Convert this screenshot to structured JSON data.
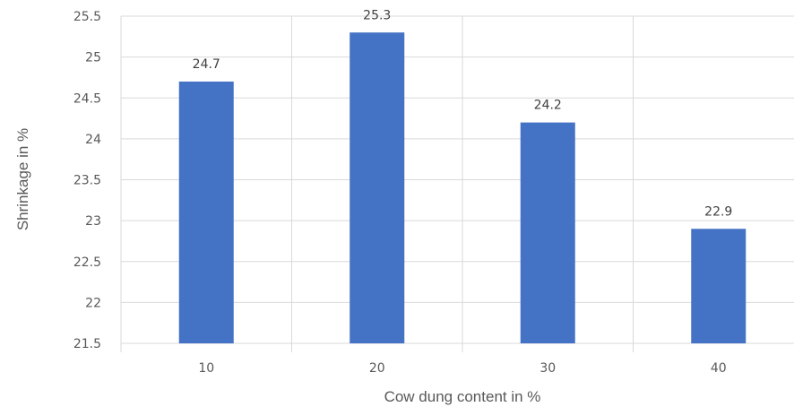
{
  "chart_data": {
    "type": "bar",
    "title": "",
    "xlabel": "Cow dung content in %",
    "ylabel": "Shrinkage in %",
    "categories": [
      "10",
      "20",
      "30",
      "40"
    ],
    "values": [
      24.7,
      25.3,
      24.2,
      22.9
    ],
    "data_labels": [
      "24.7",
      "25.3",
      "24.2",
      "22.9"
    ],
    "ylim": [
      21.5,
      25.5
    ],
    "yticks": [
      "21.5",
      "22",
      "22.5",
      "23",
      "23.5",
      "24",
      "24.5",
      "25",
      "25.5"
    ],
    "grid": true,
    "legend": "none",
    "bar_color": "#4472C4",
    "grid_color": "#D9D9D9"
  }
}
